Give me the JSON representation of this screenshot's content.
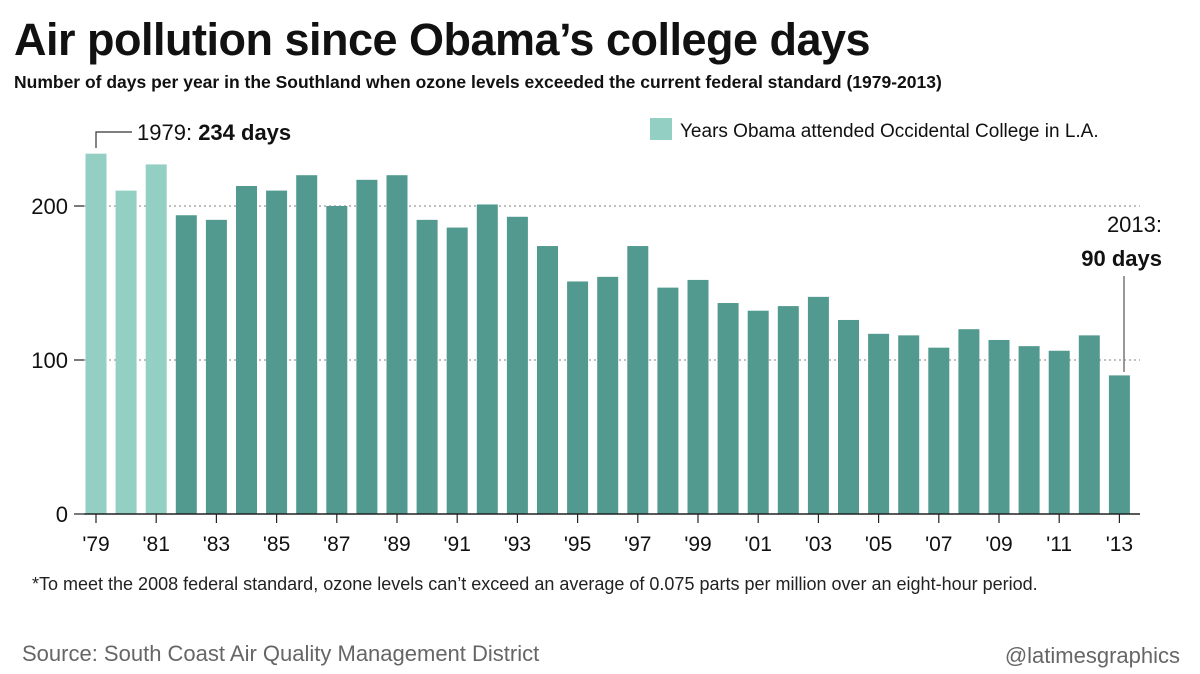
{
  "header": {
    "title": "Air pollution since Obama’s college days",
    "subtitle": "Number of days per year in the Southland when ozone levels exceeded the current federal standard (1979-2013)"
  },
  "footer": {
    "note": "*To meet the 2008 federal standard, ozone levels can’t exceed an average of 0.075 parts per million over an eight-hour period.",
    "source": "Source: South Coast Air Quality Management District",
    "credit": "@latimesgraphics"
  },
  "colors": {
    "highlight": "#93cfc2",
    "bar": "#529a90",
    "grid": "#999999",
    "text": "#111111"
  },
  "chart_data": {
    "type": "bar",
    "categories": [
      "1979",
      "1980",
      "1981",
      "1982",
      "1983",
      "1984",
      "1985",
      "1986",
      "1987",
      "1988",
      "1989",
      "1990",
      "1991",
      "1992",
      "1993",
      "1994",
      "1995",
      "1996",
      "1997",
      "1998",
      "1999",
      "2000",
      "2001",
      "2002",
      "2003",
      "2004",
      "2005",
      "2006",
      "2007",
      "2008",
      "2009",
      "2010",
      "2011",
      "2012",
      "2013"
    ],
    "values": [
      234,
      210,
      227,
      194,
      191,
      213,
      210,
      220,
      200,
      217,
      220,
      191,
      186,
      201,
      193,
      174,
      151,
      154,
      174,
      147,
      152,
      137,
      132,
      135,
      141,
      126,
      117,
      116,
      108,
      120,
      113,
      109,
      106,
      116,
      90
    ],
    "highlighted": [
      "1979",
      "1980",
      "1981"
    ],
    "tick_labels": [
      "'79",
      "'81",
      "'83",
      "'85",
      "'87",
      "'89",
      "'91",
      "'93",
      "'95",
      "'97",
      "'99",
      "'01",
      "'03",
      "'05",
      "'07",
      "'09",
      "'11",
      "'13"
    ],
    "y_ticks": [
      0,
      100,
      200
    ],
    "ylim": [
      0,
      240
    ],
    "grid": "horizontal dotted",
    "legend": {
      "label": "Years Obama attended Occidental College in L.A.",
      "position": "top-right"
    },
    "annotations": {
      "first_year": "1979:",
      "first_value": "234 days",
      "last_year": "2013:",
      "last_value": "90 days"
    }
  }
}
